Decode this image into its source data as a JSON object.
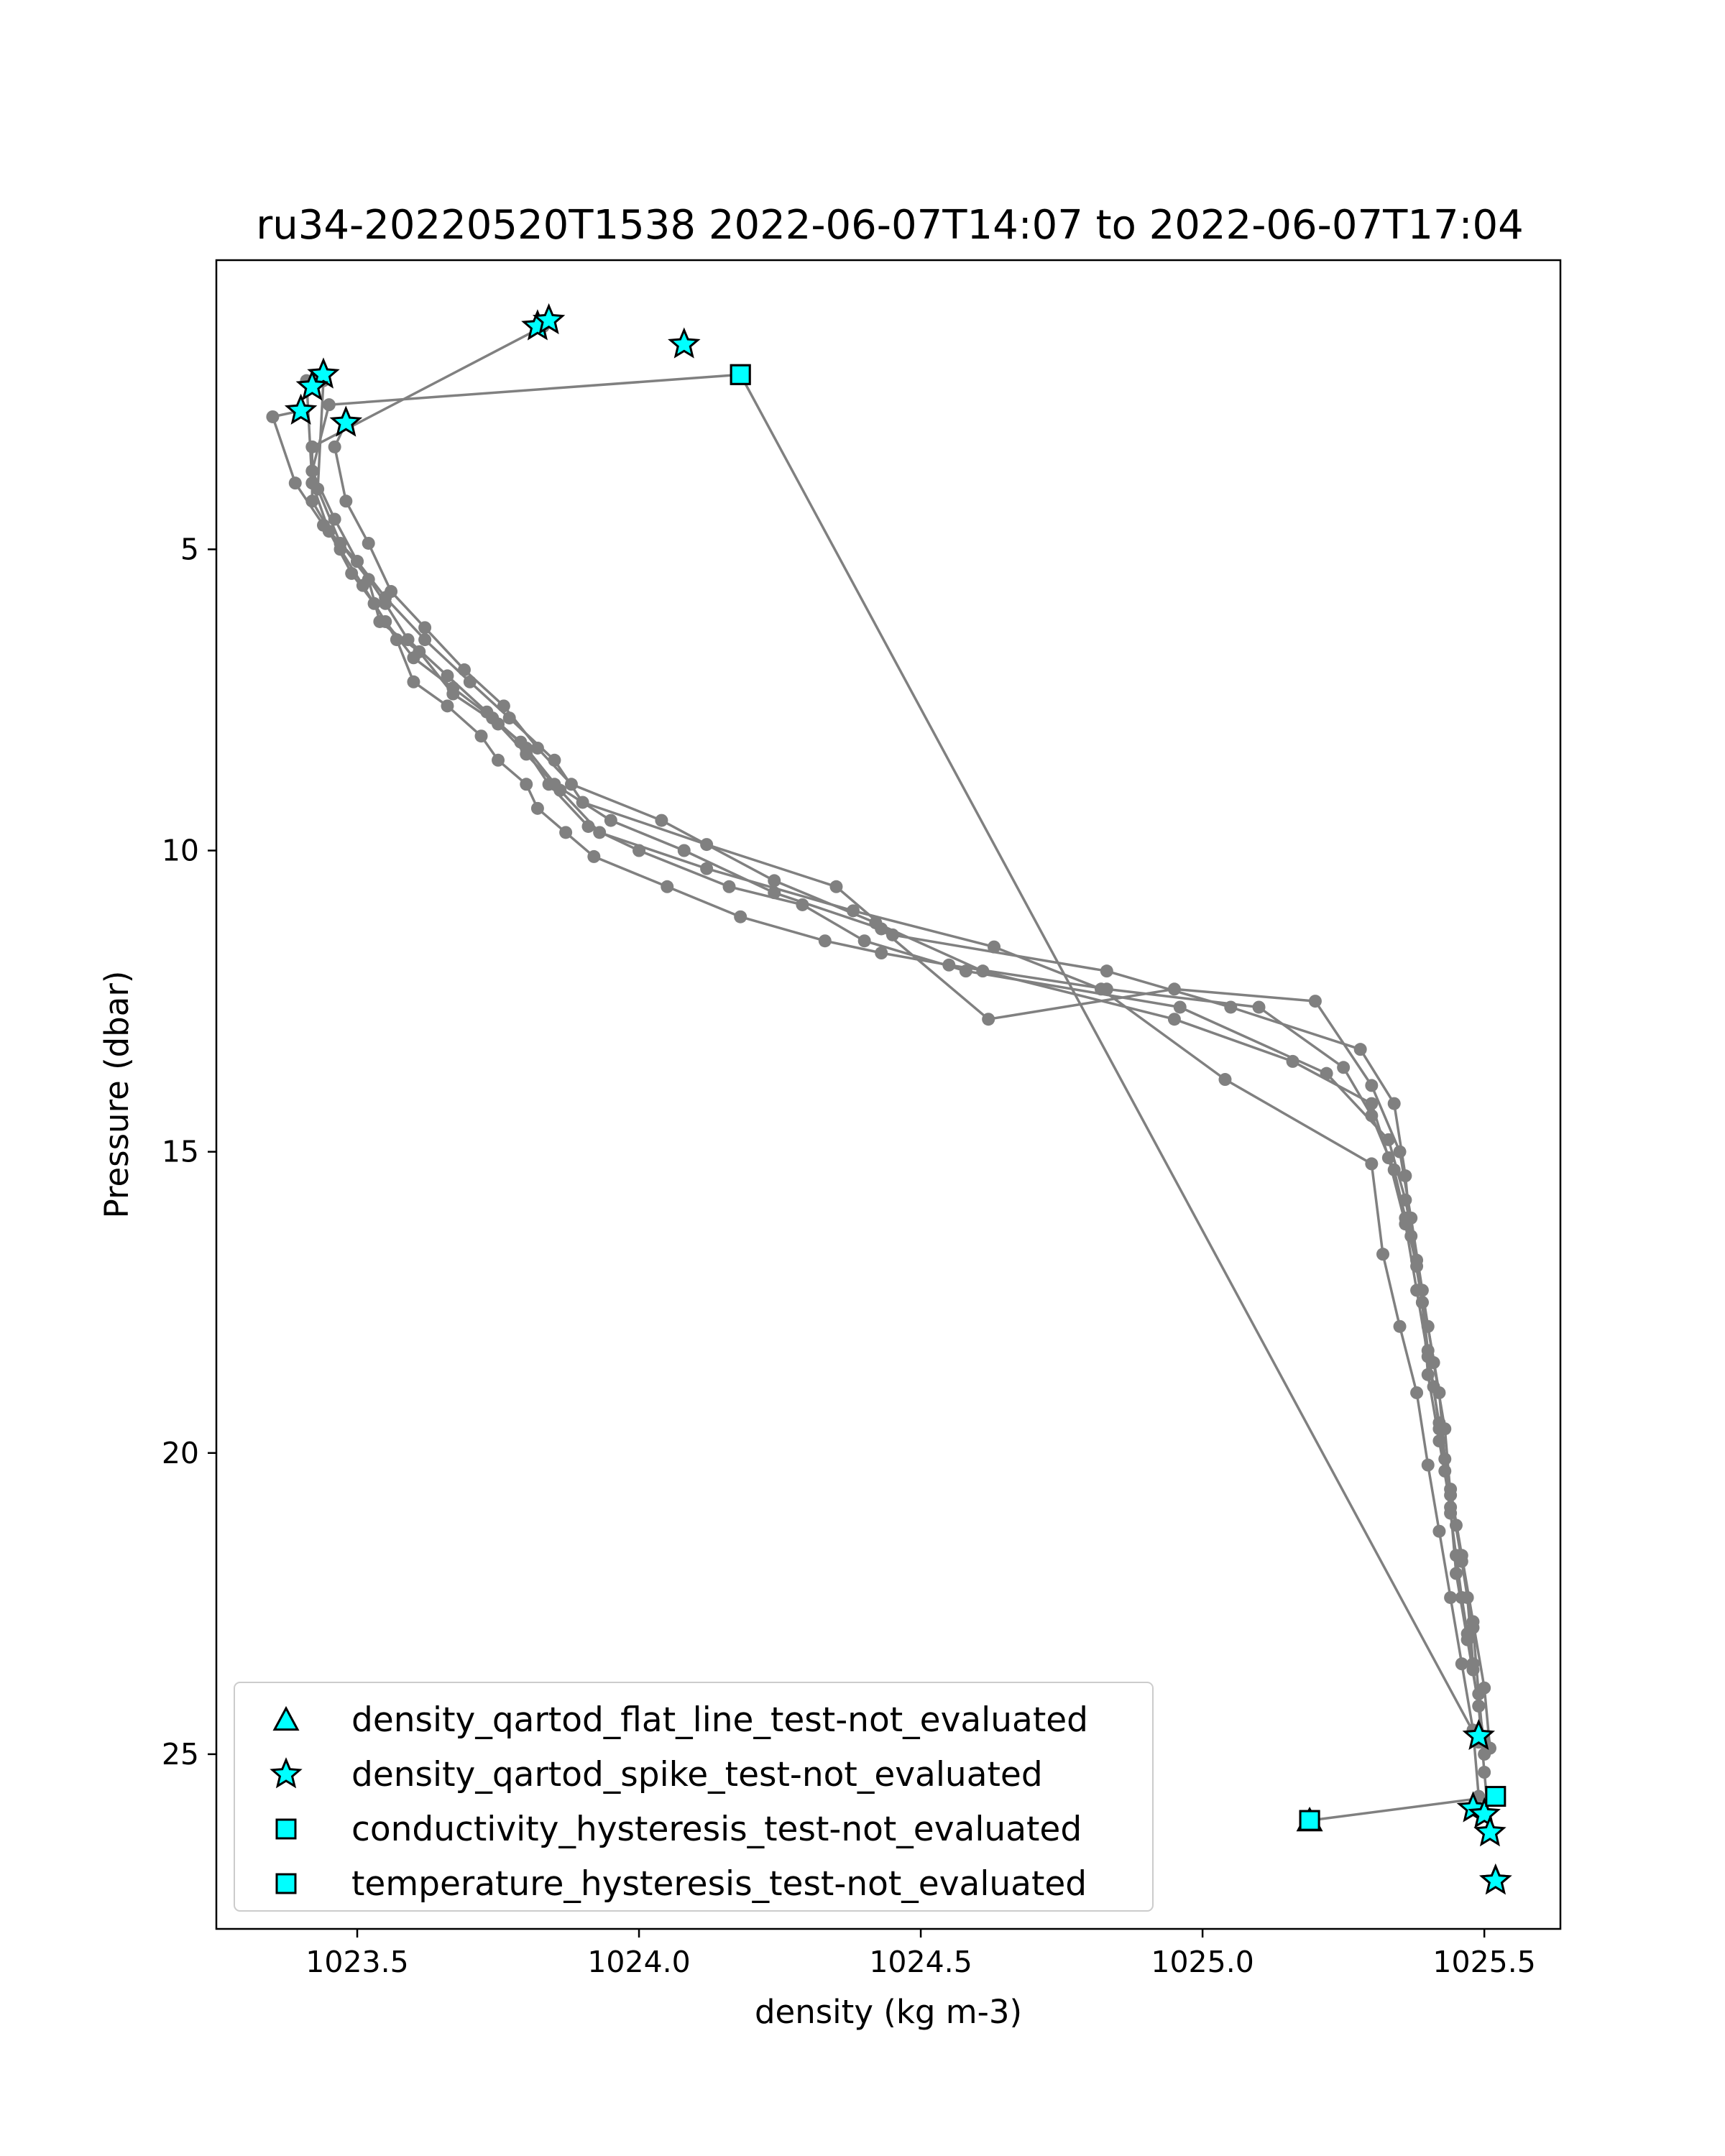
{
  "chart_data": {
    "type": "scatter",
    "title": "ru34-20220520T1538 2022-06-07T14:07 to 2022-06-07T17:04",
    "xlabel": "density (kg m-3)",
    "ylabel": "Pressure (dbar)",
    "xlim": [
      1023.25,
      1025.635
    ],
    "ylim": [
      27.9,
      0.2
    ],
    "y_inverted": true,
    "x_ticks": [
      "1023.5",
      "1024.0",
      "1024.5",
      "1025.0",
      "1025.5"
    ],
    "x_tick_values": [
      1023.5,
      1024.0,
      1024.5,
      1025.0,
      1025.5
    ],
    "y_ticks": [
      "5",
      "10",
      "15",
      "20",
      "25"
    ],
    "y_tick_values": [
      5,
      10,
      15,
      20,
      25
    ],
    "grid": false,
    "legend_position": "lower-left",
    "colors": {
      "profile": "#808080",
      "flag_fill": "#00ffff",
      "flag_edge": "#000000",
      "frame": "#000000"
    },
    "profile_series": [
      {
        "x": [
          1023.41,
          1023.42,
          1023.45,
          1023.49,
          1023.53,
          1023.57,
          1023.6,
          1023.66,
          1023.72,
          1023.75,
          1023.8,
          1023.82,
          1023.87,
          1023.92,
          1024.05,
          1024.18,
          1024.33,
          1024.43,
          1024.55,
          1024.83,
          1025.1,
          1025.25,
          1025.3,
          1025.34,
          1025.36,
          1025.38,
          1025.39,
          1025.4,
          1025.41,
          1025.42,
          1025.43,
          1025.44,
          1025.45,
          1025.46,
          1025.47,
          1025.48,
          1025.49,
          1025.5
        ],
        "y": [
          2.2,
          3.9,
          4.7,
          5.4,
          5.9,
          6.5,
          7.2,
          7.6,
          8.1,
          8.5,
          8.9,
          9.3,
          9.7,
          10.1,
          10.6,
          11.1,
          11.5,
          11.7,
          11.9,
          12.3,
          12.6,
          13.6,
          14.4,
          15.3,
          16.1,
          16.9,
          17.5,
          18.3,
          18.9,
          19.6,
          20.3,
          21,
          21.7,
          22.4,
          23,
          23.6,
          24.2,
          24.8
        ]
      },
      {
        "x": [
          1023.44,
          1023.43,
          1023.47,
          1023.52,
          1023.54,
          1023.61,
          1023.67,
          1023.75,
          1023.8,
          1023.85,
          1023.95,
          1024.08,
          1024.24,
          1024.43,
          1024.62,
          1024.95,
          1025.2,
          1025.3,
          1025.35,
          1025.37,
          1025.39,
          1025.41,
          1025.43,
          1025.44,
          1025.46,
          1025.48,
          1025.49,
          1025.5
        ],
        "y": [
          2.2,
          4,
          4.9,
          5.5,
          6.2,
          6.7,
          7.4,
          7.9,
          8.4,
          8.9,
          9.5,
          10,
          10.7,
          11.3,
          12.8,
          12.3,
          12.5,
          13.9,
          15,
          16.1,
          17.3,
          18.5,
          19.6,
          20.7,
          21.8,
          22.9,
          24,
          25
        ]
      },
      {
        "x": [
          1023.83,
          1023.42,
          1023.42,
          1023.47,
          1023.51,
          1023.55,
          1023.6,
          1023.67,
          1023.74,
          1023.79,
          1023.84,
          1023.91,
          1024.0,
          1024.16,
          1024.29,
          1024.4,
          1024.58,
          1024.96,
          1025.22,
          1025.33,
          1025.36,
          1025.38,
          1025.4,
          1025.42,
          1025.43,
          1025.45,
          1025.47,
          1025.48
        ],
        "y": [
          1.3,
          3.3,
          4.2,
          5,
          5.6,
          6.2,
          6.8,
          7.3,
          7.8,
          8.2,
          8.9,
          9.6,
          10,
          10.6,
          10.9,
          11.5,
          12,
          12.6,
          13.7,
          14.8,
          15.8,
          16.8,
          17.9,
          19,
          20.1,
          21.2,
          22.4,
          23.5
        ]
      },
      {
        "x": [
          1023.4,
          1023.35,
          1023.39,
          1023.44,
          1023.5,
          1023.55,
          1023.62,
          1023.7,
          1023.77,
          1023.85,
          1023.9,
          1024.12,
          1024.35,
          1024.45,
          1024.83,
          1025.05,
          1025.28,
          1025.34,
          1025.36,
          1025.37,
          1025.39,
          1025.4,
          1025.42,
          1025.44,
          1025.45,
          1025.47,
          1025.49,
          1025.5,
          1025.51
        ],
        "y": [
          2.7,
          2.8,
          3.9,
          4.6,
          5.2,
          5.8,
          6.5,
          7.2,
          7.8,
          8.5,
          9.2,
          9.9,
          10.6,
          11.4,
          12,
          12.6,
          13.3,
          14.2,
          15.4,
          16.4,
          17.5,
          18.7,
          19.8,
          20.9,
          22,
          23.1,
          24.2,
          25.3,
          26.3
        ]
      },
      {
        "x": [
          1023.48,
          1023.46,
          1023.48,
          1023.52,
          1023.56,
          1023.62,
          1023.69,
          1023.76,
          1023.82,
          1023.88,
          1024.04,
          1024.24,
          1024.42,
          1024.61,
          1024.95,
          1025.16,
          1025.3,
          1025.33,
          1025.36,
          1025.38,
          1025.4,
          1025.42,
          1025.44,
          1025.46,
          1025.48,
          1025.5,
          1025.51
        ],
        "y": [
          2.9,
          3.3,
          4.2,
          4.9,
          5.7,
          6.3,
          7,
          7.6,
          8.3,
          8.9,
          9.5,
          10.5,
          11.2,
          12,
          12.8,
          13.5,
          14.2,
          15.1,
          16.2,
          17.3,
          18.4,
          19.5,
          20.6,
          21.7,
          22.8,
          23.9,
          24.9
        ]
      },
      {
        "x": [
          1024.18,
          1023.45,
          1023.42,
          1023.46,
          1023.5,
          1023.55,
          1023.59,
          1023.66,
          1023.73,
          1023.8,
          1023.86,
          1023.93,
          1024.12,
          1024.38,
          1024.63,
          1024.82,
          1025.04,
          1025.3,
          1025.32,
          1025.35,
          1025.38,
          1025.4,
          1025.42,
          1025.44,
          1025.46,
          1025.48,
          1025.49
        ],
        "y": [
          2.1,
          2.6,
          3.7,
          4.5,
          5.2,
          5.9,
          6.5,
          7.1,
          7.7,
          8.3,
          9,
          9.7,
          10.3,
          11,
          11.6,
          12.3,
          13.8,
          15.2,
          16.7,
          17.9,
          19,
          20.2,
          21.3,
          22.4,
          23.5,
          24.6,
          25.7
        ]
      },
      {
        "x": [
          1024.18,
          1025.49
        ],
        "y": [
          2.1,
          24.8
        ]
      },
      {
        "x": [
          1025.19,
          1025.52
        ],
        "y": [
          26.1,
          25.7
        ]
      }
    ],
    "flag_series": [
      {
        "name": "density_qartod_flat_line_test-not_evaluated",
        "marker": "triangle",
        "x": [
          1025.19
        ],
        "y": [
          26.1
        ]
      },
      {
        "name": "density_qartod_spike_test-not_evaluated",
        "marker": "star",
        "x": [
          1023.82,
          1023.84,
          1024.08,
          1023.44,
          1023.42,
          1023.4,
          1023.48,
          1025.49,
          1025.48,
          1025.5,
          1025.51,
          1025.52,
          1025.52
        ],
        "y": [
          1.3,
          1.2,
          1.6,
          2.1,
          2.3,
          2.7,
          2.9,
          24.7,
          25.9,
          26.0,
          26.3,
          27.1,
          27.1
        ]
      },
      {
        "name": "conductivity_hysteresis_test-not_evaluated",
        "marker": "square",
        "x": [
          1024.18,
          1025.19,
          1025.52
        ],
        "y": [
          2.1,
          26.1,
          25.7
        ]
      },
      {
        "name": "temperature_hysteresis_test-not_evaluated",
        "marker": "square",
        "x": [
          1024.18,
          1025.19
        ],
        "y": [
          2.1,
          26.1
        ]
      }
    ]
  }
}
